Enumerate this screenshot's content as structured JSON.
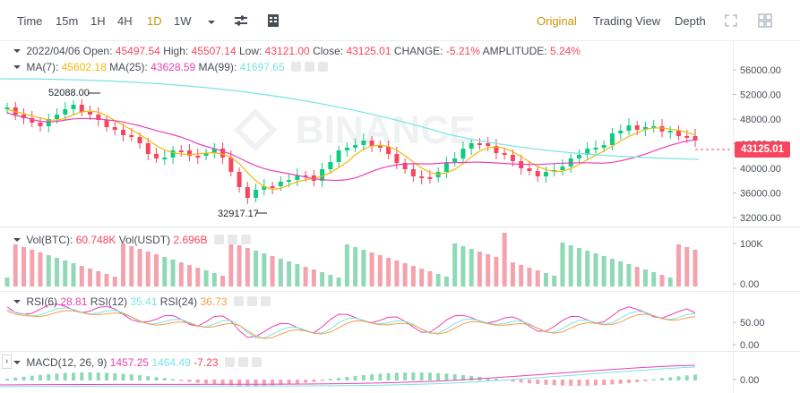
{
  "toolbar": {
    "items": [
      "Time",
      "15m",
      "1H",
      "4H",
      "1D",
      "1W"
    ],
    "active": "1D",
    "right_tabs": [
      "Original",
      "Trading View",
      "Depth"
    ],
    "active_tab": "Original"
  },
  "ohlc": {
    "date": "2022/04/06",
    "open_label": "Open:",
    "open": "45497.54",
    "high_label": "High:",
    "high": "45507.14",
    "low_label": "Low:",
    "low": "43121.00",
    "close_label": "Close:",
    "close": "43125.01",
    "change_label": "CHANGE:",
    "change": "-5.21%",
    "amp_label": "AMPLITUDE:",
    "amp": "5.24%"
  },
  "ma": {
    "ma7_label": "MA(7):",
    "ma7": "45602.18",
    "ma25_label": "MA(25):",
    "ma25": "43628.59",
    "ma99_label": "MA(99):",
    "ma99": "41697.65"
  },
  "vol": {
    "btc_label": "Vol(BTC):",
    "btc": "60.748K",
    "usdt_label": "Vol(USDT)",
    "usdt": "2.696B"
  },
  "rsi": {
    "r6_label": "RSI(6)",
    "r6": "28.81",
    "r12_label": "RSI(12)",
    "r12": "35.41",
    "r24_label": "RSI(24)",
    "r24": "36.73"
  },
  "macd": {
    "label": "MACD(12, 26, 9)",
    "v1": "1457.25",
    "v2": "1464.49",
    "v3": "-7.23"
  },
  "price_axis": [
    "56000.00",
    "52000.00",
    "48000.00",
    "44000.00",
    "40000.00",
    "36000.00",
    "32000.00"
  ],
  "vol_axis": [
    "100K",
    "0.00"
  ],
  "rsi_axis": [
    "50.00",
    "0.00"
  ],
  "macd_axis": [
    "0.00"
  ],
  "current_price": "43125.01",
  "annotations": {
    "high": "52088.00",
    "low": "32917.17"
  },
  "watermark": "BINANCE",
  "colors": {
    "up": "#0ecb81",
    "down": "#f6465d",
    "ma7": "#f0b90b",
    "ma25": "#eb40b5",
    "ma99": "#7ae4e4",
    "accent": "#c99400"
  }
}
